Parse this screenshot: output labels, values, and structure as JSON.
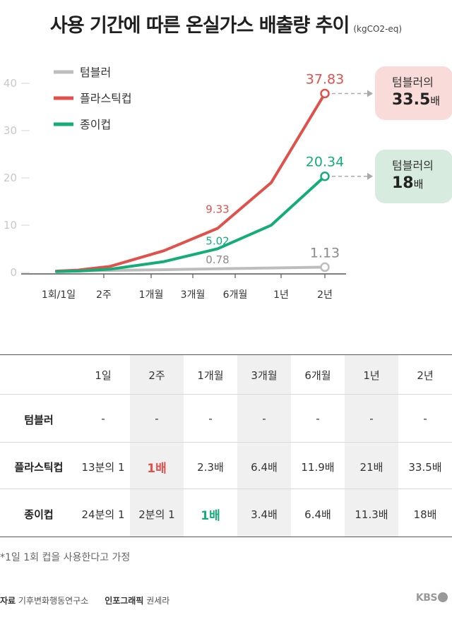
{
  "header": {
    "title": "사용 기간에 따른 온실가스 배출량 추이",
    "unit": "(kgCO2-eq)"
  },
  "chart_data": {
    "type": "line",
    "categories": [
      "1회/1일",
      "2주",
      "1개월",
      "3개월",
      "6개월",
      "1년",
      "2년"
    ],
    "ylim": [
      0,
      40
    ],
    "yticks": [
      0,
      10,
      20,
      30,
      40
    ],
    "grid": false,
    "legend_position": "top-left",
    "series": [
      {
        "name": "텀블러",
        "color": "#bdbdbd",
        "values": [
          0.3,
          0.35,
          0.45,
          0.6,
          0.78,
          0.95,
          1.13
        ]
      },
      {
        "name": "플라스틱컵",
        "color": "#e0514b",
        "values": [
          0.3,
          0.5,
          1.3,
          4.6,
          9.33,
          19.0,
          37.83
        ]
      },
      {
        "name": "종이컵",
        "color": "#14ad78",
        "values": [
          0.2,
          0.3,
          0.7,
          2.3,
          5.02,
          10.0,
          20.34
        ]
      }
    ],
    "x_points": [
      0,
      0.4,
      1.0,
      2.0,
      3.0,
      4.0,
      5.0
    ],
    "data_labels": [
      {
        "series": 0,
        "index": 4,
        "text": "0.78"
      },
      {
        "series": 0,
        "index": 6,
        "text": "1.13"
      },
      {
        "series": 1,
        "index": 4,
        "text": "9.33"
      },
      {
        "series": 1,
        "index": 6,
        "text": "37.83"
      },
      {
        "series": 2,
        "index": 4,
        "text": "5.02"
      },
      {
        "series": 2,
        "index": 6,
        "text": "20.34"
      }
    ]
  },
  "callouts": {
    "plastic": {
      "line1": "텀블러의",
      "value": "33.5",
      "unit": "배",
      "color": "#f9dcda"
    },
    "paper": {
      "line1": "텀블러의",
      "value": "18",
      "unit": "배",
      "color": "#d7ecdf"
    }
  },
  "table": {
    "columns": [
      "1일",
      "2주",
      "1개월",
      "3개월",
      "6개월",
      "1년",
      "2년"
    ],
    "rows": [
      {
        "label": "텀블러",
        "cells": [
          "-",
          "-",
          "-",
          "-",
          "-",
          "-",
          "-"
        ]
      },
      {
        "label": "플라스틱컵",
        "cells": [
          "13분의 1",
          "1배",
          "2.3배",
          "6.4배",
          "11.9배",
          "21배",
          "33.5배"
        ],
        "highlight_index": 1,
        "highlight_color": "#e0514b"
      },
      {
        "label": "종이컵",
        "cells": [
          "24분의 1",
          "2분의 1",
          "1배",
          "3.4배",
          "6.4배",
          "11.3배",
          "18배"
        ],
        "highlight_index": 2,
        "highlight_color": "#14ad78"
      }
    ]
  },
  "footnote": "*1일 1회 컵을 사용한다고 가정",
  "footer": {
    "source_label": "자료",
    "source": "기후변화행동연구소",
    "credit_label": "인포그래픽",
    "credit": "권세라",
    "logo": "KBS"
  }
}
